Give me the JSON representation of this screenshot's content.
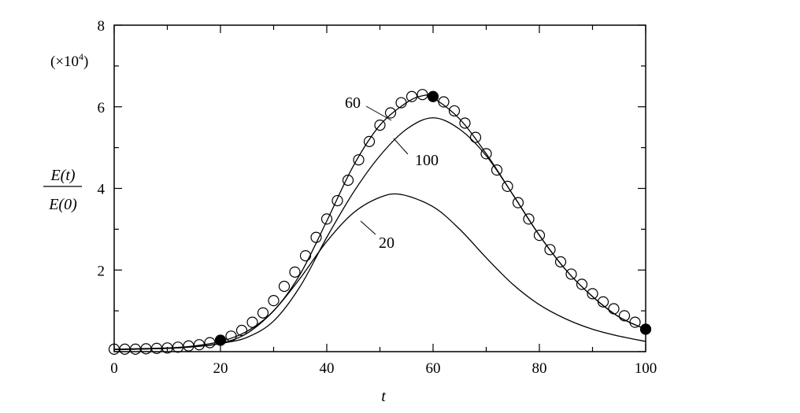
{
  "chart_data": {
    "type": "line",
    "xlabel": "t",
    "ylabel_numerator": "E(t)",
    "ylabel_denominator": "E(0)",
    "y_multiplier": "(×10",
    "y_multiplier_exp": "4",
    "y_multiplier_close": ")",
    "xlim": [
      0,
      100
    ],
    "ylim": [
      0,
      8
    ],
    "x_ticks": [
      0,
      20,
      40,
      60,
      80,
      100
    ],
    "x_tick_labels": [
      "0",
      "20",
      "40",
      "60",
      "80",
      "100"
    ],
    "y_ticks": [
      2,
      4,
      6,
      8
    ],
    "y_tick_labels": [
      "2",
      "4",
      "6",
      "8"
    ],
    "grid": false,
    "series": [
      {
        "name": "60",
        "style": "solid",
        "x": [
          0,
          10,
          15,
          20,
          25,
          30,
          35,
          40,
          45,
          50,
          55,
          58,
          60,
          65,
          70,
          75,
          80,
          85,
          90,
          95,
          100
        ],
        "y": [
          0.06,
          0.09,
          0.14,
          0.25,
          0.5,
          1.0,
          1.9,
          3.2,
          4.55,
          5.55,
          6.1,
          6.27,
          6.22,
          5.7,
          4.85,
          3.85,
          2.85,
          2.0,
          1.35,
          0.85,
          0.55
        ]
      },
      {
        "name": "100",
        "style": "solid",
        "x": [
          0,
          10,
          15,
          20,
          25,
          30,
          35,
          40,
          45,
          50,
          55,
          60,
          65,
          70,
          75,
          80,
          85,
          90,
          95,
          100
        ],
        "y": [
          0.05,
          0.08,
          0.12,
          0.2,
          0.35,
          0.75,
          1.6,
          2.8,
          3.9,
          4.8,
          5.45,
          5.73,
          5.45,
          4.8,
          3.85,
          2.85,
          2.0,
          1.35,
          0.85,
          0.55
        ]
      },
      {
        "name": "20",
        "style": "solid",
        "x": [
          0,
          10,
          15,
          20,
          25,
          30,
          35,
          40,
          45,
          50,
          54,
          60,
          65,
          70,
          75,
          80,
          85,
          90,
          95,
          100
        ],
        "y": [
          0.05,
          0.08,
          0.12,
          0.2,
          0.45,
          1.0,
          1.8,
          2.7,
          3.4,
          3.78,
          3.85,
          3.55,
          3.0,
          2.3,
          1.65,
          1.15,
          0.8,
          0.55,
          0.38,
          0.25
        ]
      },
      {
        "name": "",
        "style": "markers-open-circle",
        "x": [
          0,
          2,
          4,
          6,
          8,
          10,
          12,
          14,
          16,
          18,
          20,
          22,
          24,
          26,
          28,
          30,
          32,
          34,
          36,
          38,
          40,
          42,
          44,
          46,
          48,
          50,
          52,
          54,
          56,
          58,
          60,
          62,
          64,
          66,
          68,
          70,
          72,
          74,
          76,
          78,
          80,
          82,
          84,
          86,
          88,
          90,
          92,
          94,
          96,
          98,
          100
        ],
        "y": [
          0.06,
          0.06,
          0.06,
          0.07,
          0.08,
          0.09,
          0.11,
          0.14,
          0.17,
          0.22,
          0.28,
          0.38,
          0.52,
          0.72,
          0.95,
          1.25,
          1.6,
          1.95,
          2.35,
          2.8,
          3.25,
          3.7,
          4.2,
          4.7,
          5.15,
          5.55,
          5.85,
          6.1,
          6.25,
          6.3,
          6.25,
          6.12,
          5.9,
          5.6,
          5.25,
          4.85,
          4.45,
          4.05,
          3.65,
          3.25,
          2.85,
          2.5,
          2.2,
          1.9,
          1.65,
          1.42,
          1.22,
          1.05,
          0.88,
          0.72,
          0.55
        ]
      },
      {
        "name": "",
        "style": "markers-filled-circle",
        "x": [
          20,
          60,
          100
        ],
        "y": [
          0.28,
          6.25,
          0.55
        ]
      }
    ],
    "annotations": [
      {
        "text": "60",
        "target_series": "60"
      },
      {
        "text": "100",
        "target_series": "100"
      },
      {
        "text": "20",
        "target_series": "20"
      }
    ]
  }
}
